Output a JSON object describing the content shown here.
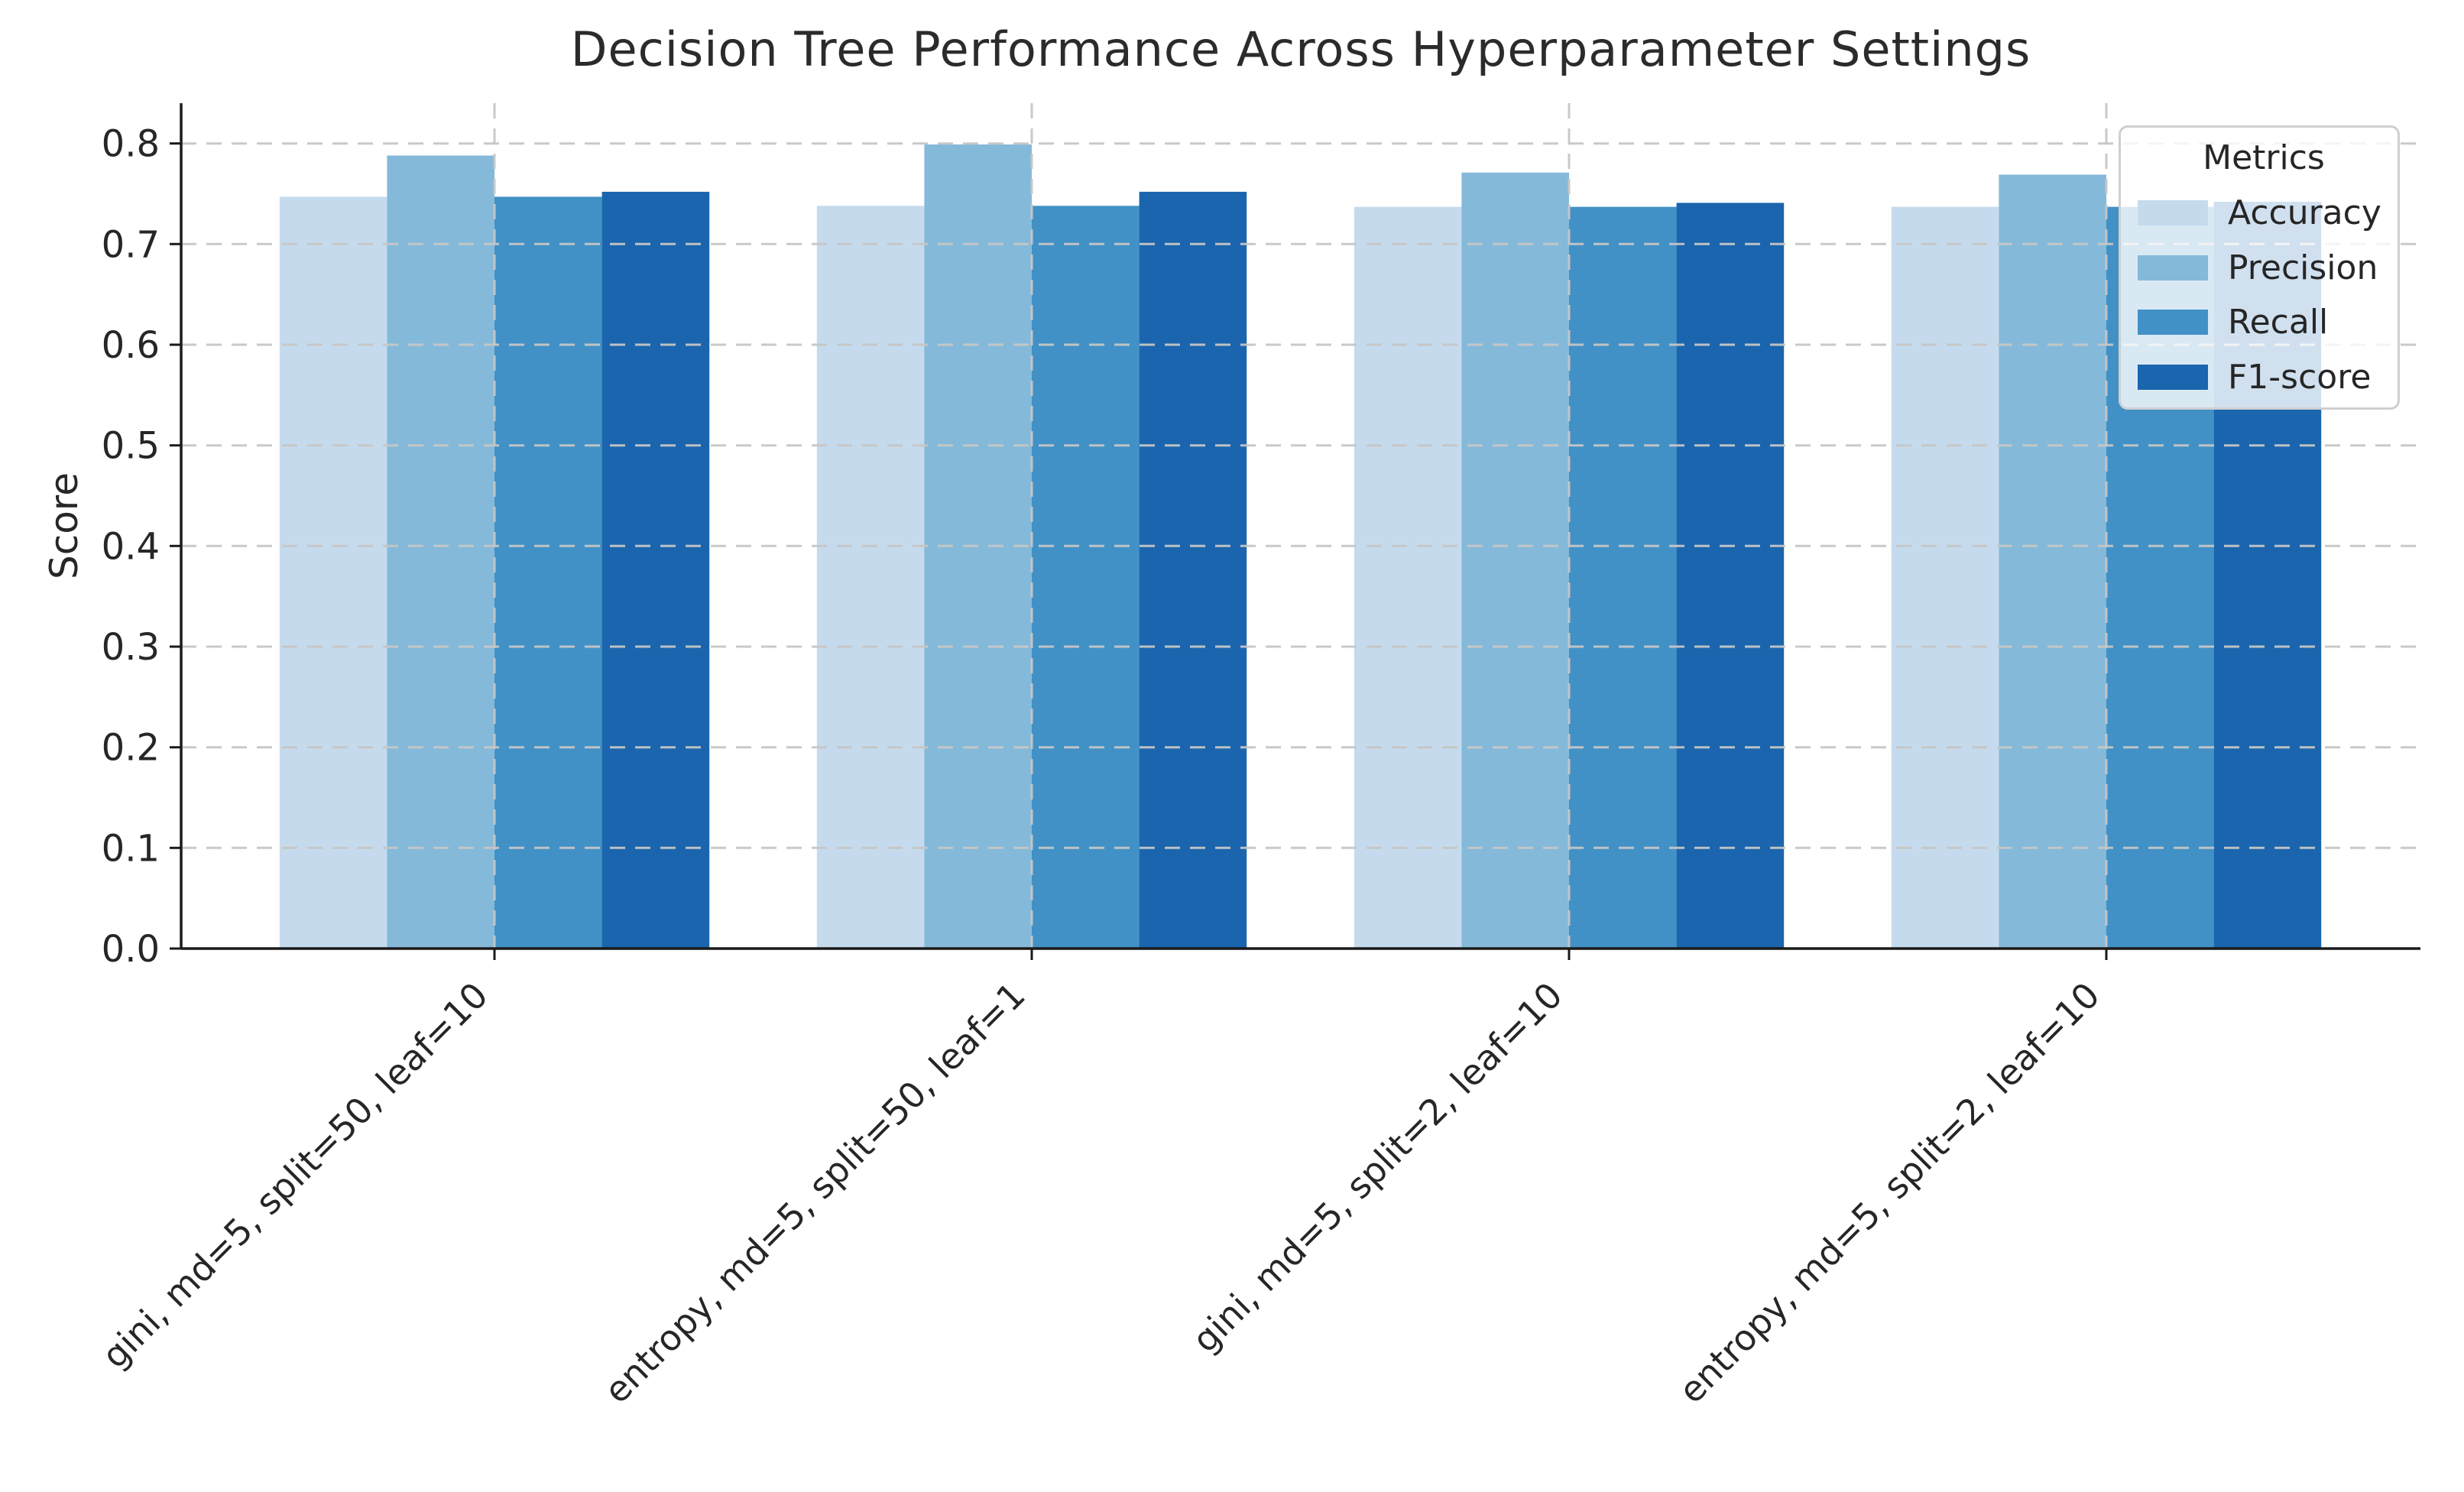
{
  "chart_data": {
    "type": "bar",
    "title": "Decision Tree Performance Across Hyperparameter Settings",
    "xlabel": "",
    "ylabel": "Score",
    "categories": [
      "gini, md=5, split=50, leaf=10",
      "entropy, md=5, split=50, leaf=1",
      "gini, md=5, split=2, leaf=10",
      "entropy, md=5, split=2, leaf=10"
    ],
    "series": [
      {
        "name": "Accuracy",
        "color": "#c5dbed",
        "values": [
          0.747,
          0.738,
          0.737,
          0.737
        ]
      },
      {
        "name": "Precision",
        "color": "#84b9da",
        "values": [
          0.788,
          0.799,
          0.771,
          0.769
        ]
      },
      {
        "name": "Recall",
        "color": "#4191c6",
        "values": [
          0.747,
          0.738,
          0.737,
          0.737
        ]
      },
      {
        "name": "F1-score",
        "color": "#1a65ad",
        "values": [
          0.752,
          0.752,
          0.741,
          0.742
        ]
      }
    ],
    "ylim": [
      0,
      0.84
    ],
    "yticks": [
      0.0,
      0.1,
      0.2,
      0.3,
      0.4,
      0.5,
      0.6,
      0.7,
      0.8
    ],
    "grid": {
      "horizontal": true,
      "vertical": true,
      "style": "dashed",
      "above_bars": true
    },
    "legend": {
      "title": "Metrics",
      "position": "upper-right"
    }
  }
}
